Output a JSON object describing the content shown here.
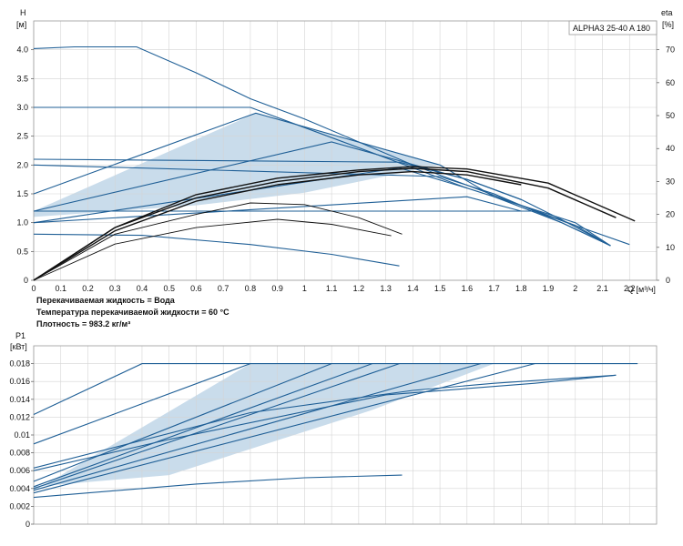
{
  "top_chart_labels": {
    "model_box": "ALPHA3 25-40 A 180",
    "y_left_label": "H",
    "y_left_unit": "[м]",
    "y_right_label": "eta",
    "y_right_unit": "[%]",
    "x_label": "Q [м³/ч]",
    "notes": [
      "Перекачиваемая жидкость = Вода",
      "Температура перекачиваемой жидкости = 60 °C",
      "Плотность = 983.2 кг/м³"
    ]
  },
  "bottom_chart_labels": {
    "y_label": "P1",
    "y_unit": "[кВт]"
  },
  "colors": {
    "curve": "#1f5f96",
    "efficiency": "#111111",
    "fill": "#bcd3e6",
    "grid": "#d4d4d4"
  },
  "chart_data": [
    {
      "type": "line",
      "title": "",
      "xlabel": "Q [м³/ч]",
      "ylabel": "H [м]",
      "y2label": "eta [%]",
      "xlim": [
        0,
        2.3
      ],
      "ylim": [
        0,
        4.5
      ],
      "y2lim": [
        0,
        78.75
      ],
      "x_ticks": [
        "0",
        "0.1",
        "0.2",
        "0.3",
        "0.4",
        "0.5",
        "0.6",
        "0.7",
        "0.8",
        "0.9",
        "1",
        "1.1",
        "1.2",
        "1.3",
        "1.4",
        "1.5",
        "1.6",
        "1.7",
        "1.8",
        "1.9",
        "2",
        "2.1",
        "2.2"
      ],
      "y_ticks": [
        "0",
        "0.5",
        "1.0",
        "1.5",
        "2.0",
        "2.5",
        "3.0",
        "3.5",
        "4.0"
      ],
      "y2_ticks": [
        "0",
        "10",
        "20",
        "30",
        "40",
        "50",
        "60",
        "70"
      ],
      "grid": true,
      "pump_curves": [
        {
          "points": [
            [
              0,
              4.02
            ],
            [
              0.15,
              4.05
            ],
            [
              0.38,
              4.05
            ],
            [
              0.6,
              3.6
            ],
            [
              0.8,
              3.15
            ],
            [
              1.0,
              2.8
            ],
            [
              1.2,
              2.4
            ],
            [
              1.4,
              2.0
            ],
            [
              1.6,
              1.65
            ],
            [
              1.8,
              1.3
            ],
            [
              2.0,
              0.95
            ],
            [
              2.2,
              0.62
            ]
          ]
        },
        {
          "points": [
            [
              0,
              3.0
            ],
            [
              0.8,
              3.0
            ],
            [
              1.0,
              2.65
            ],
            [
              1.2,
              2.3
            ],
            [
              1.4,
              1.95
            ],
            [
              1.6,
              1.6
            ],
            [
              1.8,
              1.3
            ],
            [
              2.0,
              1.0
            ],
            [
              2.13,
              0.6
            ]
          ]
        },
        {
          "points": [
            [
              0,
              2.1
            ],
            [
              1.35,
              2.05
            ],
            [
              1.6,
              1.75
            ],
            [
              1.8,
              1.4
            ],
            [
              1.95,
              1.05
            ],
            [
              2.13,
              0.6
            ]
          ]
        },
        {
          "points": [
            [
              0,
              2.0
            ],
            [
              1.5,
              1.8
            ],
            [
              1.7,
              1.5
            ],
            [
              1.95,
              1.0
            ],
            [
              2.13,
              0.6
            ]
          ]
        },
        {
          "points": [
            [
              0,
              1.2
            ],
            [
              1.85,
              1.2
            ],
            [
              2.0,
              0.95
            ],
            [
              2.13,
              0.6
            ]
          ]
        },
        {
          "points": [
            [
              0,
              0.8
            ],
            [
              0.4,
              0.78
            ],
            [
              0.8,
              0.62
            ],
            [
              1.1,
              0.45
            ],
            [
              1.35,
              0.25
            ]
          ]
        },
        {
          "points": [
            [
              0,
              1.5
            ],
            [
              0.82,
              2.9
            ],
            [
              1.5,
              2.0
            ],
            [
              1.7,
              1.45
            ],
            [
              1.95,
              1.0
            ],
            [
              2.13,
              0.6
            ]
          ]
        },
        {
          "points": [
            [
              0,
              1.2
            ],
            [
              1.1,
              2.4
            ],
            [
              1.6,
              1.75
            ],
            [
              1.8,
              1.4
            ]
          ]
        },
        {
          "points": [
            [
              0,
              1.0
            ],
            [
              1.35,
              1.95
            ],
            [
              1.6,
              1.6
            ]
          ]
        },
        {
          "points": [
            [
              0,
              1.0
            ],
            [
              1.6,
              1.45
            ],
            [
              1.8,
              1.2
            ]
          ]
        }
      ],
      "efficiency_curves": [
        {
          "points": [
            [
              0,
              0
            ],
            [
              0.3,
              16
            ],
            [
              0.6,
              26
            ],
            [
              0.9,
              31
            ],
            [
              1.2,
              33.5
            ],
            [
              1.4,
              34.5
            ],
            [
              1.6,
              33.8
            ],
            [
              1.9,
              29.5
            ],
            [
              2.22,
              18
            ]
          ]
        },
        {
          "points": [
            [
              0,
              0
            ],
            [
              0.3,
              16
            ],
            [
              0.6,
              25
            ],
            [
              0.9,
              30
            ],
            [
              1.2,
              33
            ],
            [
              1.4,
              34
            ],
            [
              1.6,
              33
            ],
            [
              1.9,
              28
            ],
            [
              2.15,
              19
            ]
          ]
        },
        {
          "points": [
            [
              0,
              0
            ],
            [
              0.3,
              15
            ],
            [
              0.6,
              24
            ],
            [
              0.9,
              29
            ],
            [
              1.2,
              32
            ],
            [
              1.4,
              33
            ],
            [
              1.6,
              32
            ],
            [
              1.8,
              29
            ]
          ]
        },
        {
          "points": [
            [
              0,
              0
            ],
            [
              0.3,
              14
            ],
            [
              0.6,
              20
            ],
            [
              0.8,
              23.5
            ],
            [
              1.0,
              23
            ],
            [
              1.2,
              19
            ],
            [
              1.36,
              14
            ]
          ]
        },
        {
          "points": [
            [
              0,
              0
            ],
            [
              0.3,
              11
            ],
            [
              0.6,
              16
            ],
            [
              0.9,
              18.5
            ],
            [
              1.1,
              17
            ],
            [
              1.32,
              13.5
            ]
          ]
        }
      ]
    },
    {
      "type": "line",
      "title": "",
      "xlabel": "",
      "ylabel": "P1 [кВт]",
      "xlim": [
        0,
        2.3
      ],
      "ylim": [
        0,
        0.02
      ],
      "y_ticks": [
        "0",
        "0.002",
        "0.004",
        "0.006",
        "0.008",
        "0.01",
        "0.012",
        "0.014",
        "0.016",
        "0.018"
      ],
      "grid": true,
      "power_curves": [
        {
          "points": [
            [
              0,
              0.0123
            ],
            [
              0.4,
              0.018
            ],
            [
              2.23,
              0.018
            ]
          ]
        },
        {
          "points": [
            [
              0,
              0.009
            ],
            [
              0.8,
              0.018
            ]
          ]
        },
        {
          "points": [
            [
              0,
              0.0063
            ],
            [
              0.8,
              0.0125
            ],
            [
              1.4,
              0.015
            ],
            [
              1.7,
              0.0158
            ],
            [
              2.15,
              0.0167
            ]
          ]
        },
        {
          "points": [
            [
              0,
              0.0048
            ],
            [
              1.1,
              0.018
            ]
          ]
        },
        {
          "points": [
            [
              0,
              0.0042
            ],
            [
              1.25,
              0.018
            ]
          ]
        },
        {
          "points": [
            [
              0,
              0.004
            ],
            [
              1.35,
              0.018
            ]
          ]
        },
        {
          "points": [
            [
              0,
              0.0038
            ],
            [
              1.65,
              0.018
            ]
          ]
        },
        {
          "points": [
            [
              0,
              0.0035
            ],
            [
              1.85,
              0.018
            ]
          ]
        },
        {
          "points": [
            [
              0,
              0.006
            ],
            [
              0.5,
              0.0095
            ],
            [
              1.3,
              0.0145
            ],
            [
              1.85,
              0.0158
            ],
            [
              2.15,
              0.0167
            ]
          ]
        },
        {
          "points": [
            [
              0,
              0.003
            ],
            [
              0.6,
              0.0045
            ],
            [
              1.0,
              0.0052
            ],
            [
              1.36,
              0.0055
            ]
          ]
        }
      ],
      "fill_region": [
        [
          0,
          0.0037
        ],
        [
          0.8,
          0.018
        ],
        [
          1.7,
          0.018
        ],
        [
          1.25,
          0.0128
        ],
        [
          0.9,
          0.0094
        ],
        [
          0.5,
          0.0055
        ],
        [
          0,
          0.0042
        ]
      ]
    }
  ]
}
